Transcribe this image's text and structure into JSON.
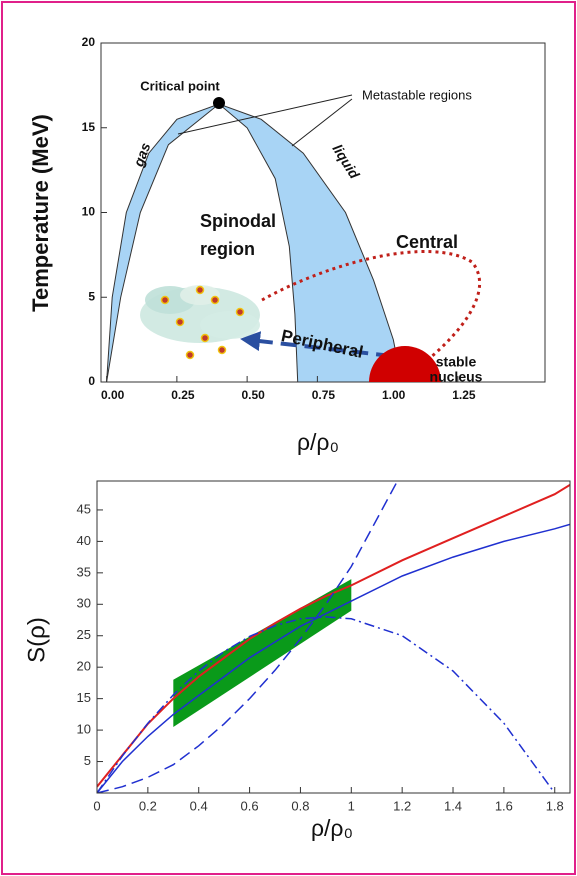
{
  "chart_data": [
    {
      "type": "phase",
      "ylabel": "Temperature (MeV)",
      "xlabel": "ρ/ρ₀",
      "xlim": [
        -0.02,
        1.56
      ],
      "ylim": [
        0,
        20
      ],
      "xticks": [
        {
          "value": 0,
          "label": "0.00"
        },
        0.25,
        {
          "value": 0.5,
          "label": "0.50"
        },
        0.75,
        {
          "value": 1,
          "label": "1.00"
        },
        1.25
      ],
      "yticks": [
        0,
        5,
        10,
        15,
        20
      ],
      "series": [
        {
          "color": "#a8d4f5",
          "x": [
            0,
            0.02,
            0.07,
            0.15,
            0.25,
            0.4,
            0.55,
            0.7,
            0.85,
            0.95,
            1.02,
            1.05
          ],
          "values": [
            0,
            5,
            10,
            13.5,
            15.5,
            16.4,
            15.5,
            13.5,
            10,
            6,
            2.5,
            0
          ]
        },
        {
          "color": "#ffffff",
          "x": [
            0,
            0.05,
            0.12,
            0.22,
            0.4,
            0.5,
            0.6,
            0.65,
            0.67,
            0.68
          ],
          "values": [
            0,
            5,
            10,
            14,
            16.4,
            15,
            12,
            8,
            4,
            0
          ]
        }
      ],
      "annotations": {
        "critical_point": "Critical point",
        "metastable": "Metastable regions",
        "gas": "gas",
        "liquid": "liquid",
        "spinodal_region": [
          "Spinodal",
          "region"
        ],
        "central": "Central",
        "peripheral": "Peripheral",
        "stable_nucleus": [
          "stable",
          "nucleus"
        ]
      }
    },
    {
      "type": "line",
      "ylabel": "S(ρ)",
      "xlabel": "ρ/ρ₀",
      "xlim": [
        0,
        1.86
      ],
      "ylim": [
        0,
        49.6
      ],
      "xticks": [
        0,
        0.2,
        0.4,
        0.6,
        0.8,
        1,
        1.2,
        1.4,
        1.6,
        1.8
      ],
      "yticks": [
        5,
        10,
        15,
        20,
        25,
        30,
        35,
        40,
        45
      ],
      "band": {
        "color": "#0a9a1a",
        "x": [
          0.3,
          1.0
        ],
        "lower": [
          10.5,
          29
        ],
        "upper": [
          18,
          34
        ]
      },
      "x": [
        0,
        0.1,
        0.2,
        0.3,
        0.4,
        0.5,
        0.6,
        0.7,
        0.8,
        0.9,
        1.0,
        1.2,
        1.4,
        1.6,
        1.8,
        1.86
      ],
      "series": [
        {
          "color": "#e02020",
          "style": "solid",
          "values": [
            1,
            6,
            11,
            15,
            18.5,
            21.5,
            24.5,
            27,
            29.3,
            31.3,
            33,
            37,
            40.5,
            44,
            47.5,
            49
          ]
        },
        {
          "color": "#2030d0",
          "style": "solid",
          "values": [
            0,
            5,
            9,
            12.5,
            15.5,
            18.5,
            21.5,
            24,
            26.5,
            28.5,
            30.5,
            34.5,
            37.5,
            40,
            42,
            42.7
          ]
        },
        {
          "color": "#2030d0",
          "style": "dashed",
          "values": [
            0,
            1,
            2.5,
            4.5,
            7.5,
            11,
            15,
            19.5,
            24.5,
            30,
            36,
            51,
            null,
            null,
            null,
            null
          ]
        },
        {
          "color": "#2030d0",
          "style": "dashdot",
          "values": [
            0,
            5.9,
            11.1,
            15.6,
            19.4,
            22.5,
            24.9,
            26.6,
            27.7,
            28,
            27.7,
            25,
            19.4,
            11.1,
            0,
            null
          ]
        }
      ]
    }
  ]
}
